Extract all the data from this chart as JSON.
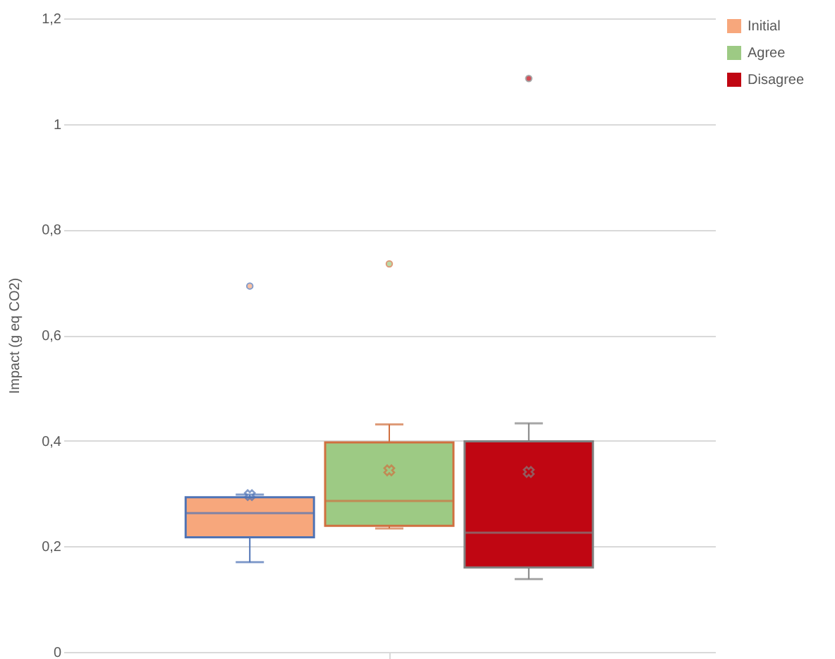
{
  "chart_data": {
    "type": "box",
    "ylabel": "Impact (g eq CO2)",
    "categories": [
      null
    ],
    "ylim": [
      0,
      1.2
    ],
    "yticks": [
      {
        "value": 0,
        "label": "0"
      },
      {
        "value": 0.2,
        "label": "0,2"
      },
      {
        "value": 0.4,
        "label": "0,4"
      },
      {
        "value": 0.6,
        "label": "0,6"
      },
      {
        "value": 0.8,
        "label": "0,8"
      },
      {
        "value": 1,
        "label": "1"
      },
      {
        "value": 1.2,
        "label": "1,2"
      }
    ],
    "grid": "y",
    "legend": "right",
    "marker": "cross",
    "series": [
      {
        "name": "Initial",
        "color": "#f7a77c",
        "boxes": [
          {
            "low": 0.17,
            "q1": 0.217,
            "median": 0.263,
            "q3": 0.293,
            "high": 0.298,
            "mean": 0.297,
            "outliers": [
              0.693
            ]
          }
        ]
      },
      {
        "name": "Agree",
        "color": "#9dca84",
        "boxes": [
          {
            "low": 0.234,
            "q1": 0.239,
            "median": 0.286,
            "q3": 0.397,
            "high": 0.431,
            "mean": 0.344,
            "outliers": [
              0.735
            ]
          }
        ]
      },
      {
        "name": "Disagree",
        "color": "#c00612",
        "boxes": [
          {
            "low": 0.138,
            "q1": 0.16,
            "median": 0.226,
            "q3": 0.399,
            "high": 0.433,
            "mean": 0.341,
            "outliers": [
              1.086
            ]
          }
        ]
      }
    ]
  }
}
